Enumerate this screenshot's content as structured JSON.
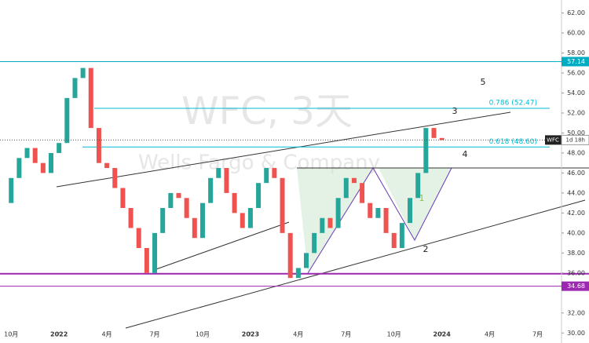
{
  "chart_data": {
    "type": "candlestick",
    "watermark": "WFC, 3天",
    "watermark_subtitle": "Wells Fargo & Company",
    "symbol": "WFC",
    "countdown": "1d 18h",
    "x": [
      -0.5,
      0,
      0.5,
      1,
      1.5,
      2,
      2.5,
      3,
      3.5,
      4,
      4.5,
      5,
      5.5,
      6,
      6.5,
      7,
      7.5,
      8,
      8.5,
      9,
      9.5,
      10,
      10.5,
      11,
      11.5,
      12,
      12.5,
      13,
      13.5,
      14,
      14.5,
      15,
      15.5,
      16,
      16.5,
      17,
      17.5,
      18,
      18.5,
      19,
      19.5,
      20,
      20.5,
      21,
      21.5,
      22,
      22.5,
      23,
      23.5,
      24,
      24.5,
      25,
      25.5,
      26,
      26.5,
      27
    ],
    "close": [
      43.0,
      45.5,
      47.5,
      48.5,
      47.0,
      46.0,
      48.0,
      49.0,
      53.5,
      55.5,
      56.5,
      50.5,
      47.0,
      46.5,
      44.5,
      42.5,
      40.5,
      38.5,
      36.0,
      40.0,
      42.5,
      44.0,
      43.5,
      41.5,
      39.5,
      43.0,
      45.5,
      46.5,
      44.0,
      42.0,
      40.5,
      42.5,
      45.0,
      46.5,
      45.5,
      40.0,
      35.5,
      36.5,
      38.0,
      40.0,
      41.5,
      40.5,
      43.5,
      45.5,
      45.0,
      43.0,
      41.5,
      42.5,
      40.0,
      38.5,
      41.0,
      43.5,
      46.0,
      50.5,
      49.5,
      49.3
    ],
    "up_color": "#26a69a",
    "down_color": "#ef5350",
    "xlim": [
      -0.7,
      34.5
    ],
    "ylim": [
      29,
      63.3
    ],
    "xticks": [
      {
        "value": 0,
        "label": "10月"
      },
      {
        "value": 3,
        "label": "2022"
      },
      {
        "value": 6,
        "label": "4月"
      },
      {
        "value": 9,
        "label": "7月"
      },
      {
        "value": 12,
        "label": "10月"
      },
      {
        "value": 15,
        "label": "2023"
      },
      {
        "value": 18,
        "label": "4月"
      },
      {
        "value": 21,
        "label": "7月"
      },
      {
        "value": 24,
        "label": "10月"
      },
      {
        "value": 27,
        "label": "2024"
      },
      {
        "value": 30,
        "label": "4月"
      },
      {
        "value": 33,
        "label": "7月"
      }
    ],
    "yticks": [
      {
        "value": 30,
        "label": "30.00"
      },
      {
        "value": 32,
        "label": "32.00"
      },
      {
        "value": 36,
        "label": "36.00"
      },
      {
        "value": 38,
        "label": "38.00"
      },
      {
        "value": 40,
        "label": "40.00"
      },
      {
        "value": 42,
        "label": "42.00"
      },
      {
        "value": 44,
        "label": "44.00"
      },
      {
        "value": 46,
        "label": "46.00"
      },
      {
        "value": 48,
        "label": "48.00"
      },
      {
        "value": 50,
        "label": "50.00"
      },
      {
        "value": 52,
        "label": "52.00"
      },
      {
        "value": 54,
        "label": "54.00"
      },
      {
        "value": 56,
        "label": "56.00"
      },
      {
        "value": 58,
        "label": "58.00"
      },
      {
        "value": 60,
        "label": "60.00"
      },
      {
        "value": 62,
        "label": "62.00"
      }
    ],
    "levels": [
      {
        "value": 57.14,
        "label": "57.14",
        "color": "#00acc1"
      },
      {
        "value": 34.68,
        "label": "34.68",
        "color": "#9c27b0"
      }
    ],
    "fib": [
      {
        "value": 52.47,
        "label": "0.786 (52.47)"
      },
      {
        "value": 48.6,
        "label": "0.618 (48.60)"
      }
    ],
    "fib_color": "#00bcd4",
    "waves": [
      "1",
      "2",
      "3",
      "4",
      "5"
    ]
  }
}
